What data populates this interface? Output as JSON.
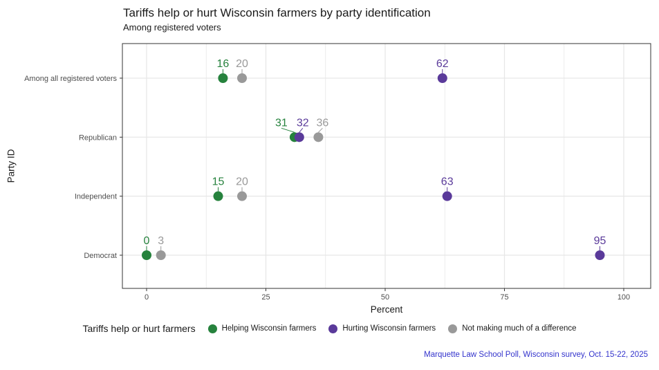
{
  "title": "Tariffs help or hurt Wisconsin farmers by party identification",
  "subtitle": "Among registered voters",
  "caption": "Marquette Law School Poll, Wisconsin survey, Oct. 15-22, 2025",
  "colors": {
    "helping": "#26823d",
    "hurting": "#5a3a9a",
    "neither": "#999999",
    "caption": "#3333cc",
    "grid": "#e6e6e6",
    "axis_text": "#4d4d4d",
    "panel_border": "#333333"
  },
  "legend": {
    "title": "Tariffs help or hurt farmers",
    "items": [
      {
        "label": "Helping Wisconsin farmers",
        "color_key": "helping"
      },
      {
        "label": "Hurting Wisconsin farmers",
        "color_key": "hurting"
      },
      {
        "label": "Not making much of a difference",
        "color_key": "neither"
      }
    ]
  },
  "chart_data": {
    "type": "scatter",
    "title": "Tariffs help or hurt Wisconsin farmers by party identification",
    "subtitle": "Among registered voters",
    "xlabel": "Percent",
    "ylabel": "Party ID",
    "xlim": [
      0,
      100
    ],
    "x_ticks": [
      0,
      25,
      50,
      75,
      100
    ],
    "x_minor_step": 12.5,
    "grid": true,
    "legend_position": "bottom",
    "categories": [
      "Among all registered voters",
      "Republican",
      "Independent",
      "Democrat"
    ],
    "series": [
      {
        "name": "Helping Wisconsin farmers",
        "color_key": "helping",
        "values": [
          16,
          31,
          15,
          0
        ],
        "label_dx": [
          0,
          -19,
          0,
          0
        ]
      },
      {
        "name": "Hurting Wisconsin farmers",
        "color_key": "hurting",
        "values": [
          62,
          32,
          63,
          95
        ],
        "label_dx": [
          0,
          5,
          0,
          0
        ]
      },
      {
        "name": "Not making much of a difference",
        "color_key": "neither",
        "values": [
          20,
          36,
          20,
          3
        ],
        "label_dx": [
          0,
          6,
          0,
          0
        ]
      }
    ]
  }
}
